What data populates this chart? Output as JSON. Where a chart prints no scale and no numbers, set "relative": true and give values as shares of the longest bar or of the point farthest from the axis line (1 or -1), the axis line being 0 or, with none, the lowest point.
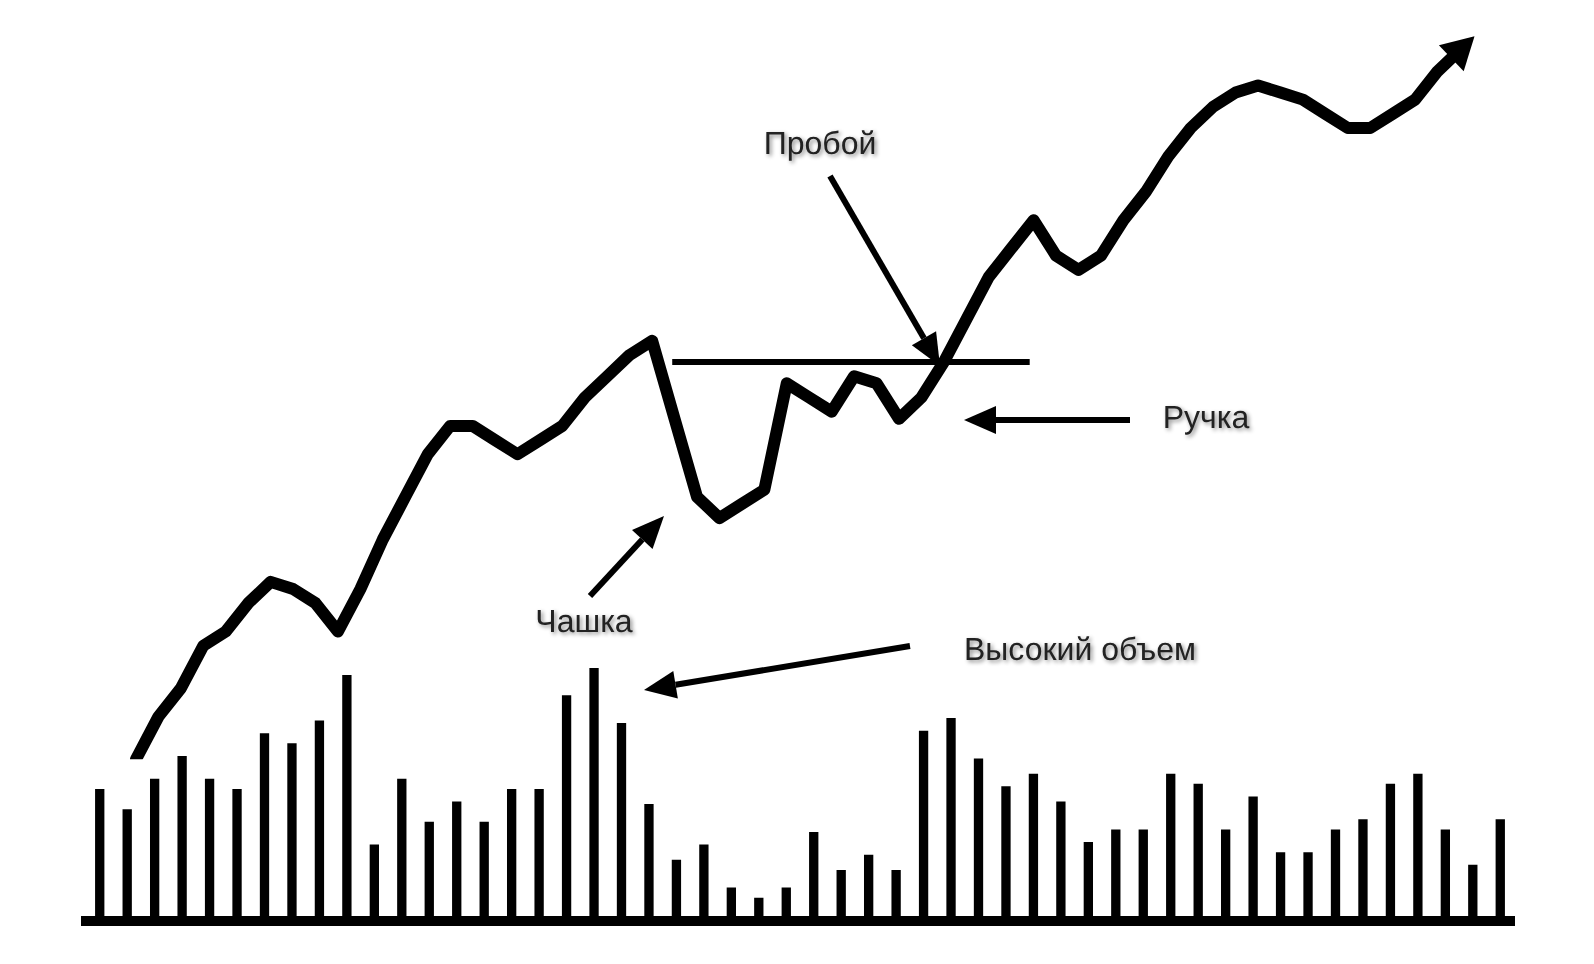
{
  "chart_data": [
    {
      "type": "line",
      "relative": true,
      "grid": false,
      "legend": false,
      "marker": "none",
      "line_style": "solid",
      "categories": [
        null,
        null,
        null,
        null,
        null,
        null,
        null,
        null,
        null,
        null,
        null,
        null,
        null,
        null,
        null,
        null,
        null,
        null,
        null,
        null,
        null,
        null,
        null,
        null,
        null,
        null,
        null,
        null,
        null,
        null,
        null,
        null,
        null,
        null,
        null,
        null,
        null,
        null,
        null,
        null,
        null,
        null,
        null,
        null,
        null,
        null,
        null,
        null,
        null,
        null,
        null,
        null,
        null,
        null,
        null,
        null,
        null,
        null,
        null,
        null
      ],
      "series": [
        {
          "color": "#000000",
          "values": [
            0,
            0.06,
            0.1,
            0.16,
            0.18,
            0.22,
            0.25,
            0.24,
            0.22,
            0.18,
            0.24,
            0.31,
            0.37,
            0.43,
            0.47,
            0.47,
            0.45,
            0.43,
            0.45,
            0.47,
            0.51,
            0.54,
            0.57,
            0.59,
            0.48,
            0.37,
            0.34,
            0.36,
            0.38,
            0.53,
            0.51,
            0.49,
            0.54,
            0.53,
            0.48,
            0.51,
            0.56,
            0.62,
            0.68,
            0.72,
            0.76,
            0.71,
            0.69,
            0.71,
            0.76,
            0.8,
            0.85,
            0.89,
            0.92,
            0.94,
            0.95,
            0.94,
            0.93,
            0.91,
            0.89,
            0.89,
            0.91,
            0.93,
            0.97,
            1.0
          ]
        }
      ],
      "ref_lines": [
        {
          "axis": "y",
          "value": 0.56,
          "color": "#000000"
        }
      ],
      "annotations": [
        "Пробой",
        "Ручка",
        "Чашка"
      ]
    },
    {
      "type": "bar",
      "relative": true,
      "grid": false,
      "legend": false,
      "categories": [
        null,
        null,
        null,
        null,
        null,
        null,
        null,
        null,
        null,
        null,
        null,
        null,
        null,
        null,
        null,
        null,
        null,
        null,
        null,
        null,
        null,
        null,
        null,
        null,
        null,
        null,
        null,
        null,
        null,
        null,
        null,
        null,
        null,
        null,
        null,
        null,
        null,
        null,
        null,
        null,
        null,
        null,
        null,
        null,
        null,
        null,
        null,
        null,
        null,
        null,
        null,
        null
      ],
      "series": [
        {
          "color": "#000000",
          "values": [
            0.52,
            0.44,
            0.56,
            0.65,
            0.56,
            0.52,
            0.74,
            0.7,
            0.79,
            0.97,
            0.3,
            0.56,
            0.39,
            0.47,
            0.39,
            0.52,
            0.52,
            0.89,
            1,
            0.78,
            0.46,
            0.24,
            0.3,
            0.13,
            0.09,
            0.13,
            0.35,
            0.2,
            0.26,
            0.2,
            0.75,
            0.8,
            0.64,
            0.53,
            0.58,
            0.47,
            0.31,
            0.36,
            0.36,
            0.58,
            0.54,
            0.36,
            0.49,
            0.27,
            0.27,
            0.36,
            0.4,
            0.54,
            0.58,
            0.36,
            0.22,
            0.4
          ]
        }
      ],
      "annotations": [
        "Высокий объем"
      ]
    }
  ]
}
